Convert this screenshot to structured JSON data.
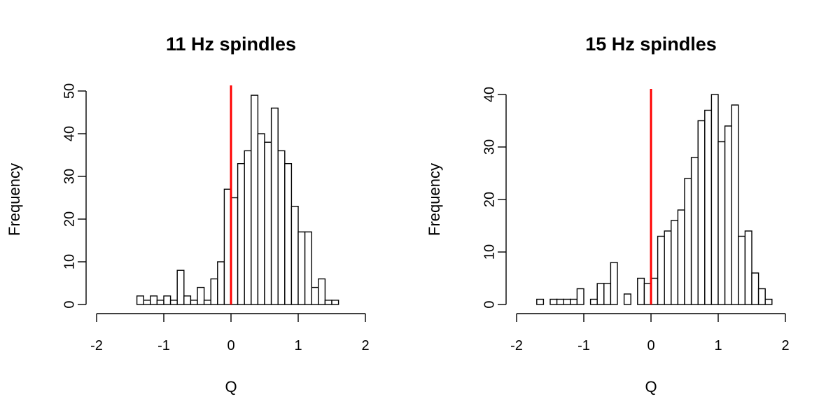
{
  "chart_data": [
    {
      "type": "bar",
      "title": "11 Hz spindles",
      "xlabel": "Q",
      "ylabel": "Frequency",
      "xlim": [
        -2,
        2
      ],
      "ylim": [
        0,
        50
      ],
      "x_ticks": [
        "-2",
        "-1",
        "0",
        "1",
        "2"
      ],
      "y_ticks": [
        "0",
        "10",
        "20",
        "30",
        "40",
        "50"
      ],
      "bin_width": 0.1,
      "bins_start": [
        -1.4,
        -1.3,
        -1.2,
        -1.1,
        -1.0,
        -0.9,
        -0.8,
        -0.7,
        -0.6,
        -0.5,
        -0.4,
        -0.3,
        -0.2,
        -0.1,
        0.0,
        0.1,
        0.2,
        0.3,
        0.4,
        0.5,
        0.6,
        0.7,
        0.8,
        0.9,
        1.0,
        1.1,
        1.2,
        1.3,
        1.4,
        1.5
      ],
      "values": [
        2,
        1,
        2,
        1,
        2,
        1,
        8,
        2,
        1,
        4,
        1,
        6,
        10,
        27,
        25,
        33,
        36,
        49,
        40,
        38,
        46,
        36,
        33,
        23,
        17,
        17,
        4,
        6,
        1,
        1
      ],
      "reference_line": {
        "x": 0,
        "color": "#ff0000"
      },
      "bar_fill": "#ffffff",
      "bar_stroke": "#000000",
      "grid": false
    },
    {
      "type": "bar",
      "title": "15 Hz spindles",
      "xlabel": "Q",
      "ylabel": "Frequency",
      "xlim": [
        -2,
        2
      ],
      "ylim": [
        0,
        40
      ],
      "x_ticks": [
        "-2",
        "-1",
        "0",
        "1",
        "2"
      ],
      "y_ticks": [
        "0",
        "10",
        "20",
        "30",
        "40"
      ],
      "bin_width": 0.1,
      "bins_start": [
        -1.7,
        -1.6,
        -1.5,
        -1.4,
        -1.3,
        -1.2,
        -1.1,
        -1.0,
        -0.9,
        -0.8,
        -0.7,
        -0.6,
        -0.5,
        -0.4,
        -0.3,
        -0.2,
        -0.1,
        0.0,
        0.1,
        0.2,
        0.3,
        0.4,
        0.5,
        0.6,
        0.7,
        0.8,
        0.9,
        1.0,
        1.1,
        1.2,
        1.3,
        1.4,
        1.5,
        1.6,
        1.7
      ],
      "values": [
        1,
        0,
        1,
        1,
        1,
        1,
        3,
        0,
        1,
        4,
        4,
        8,
        0,
        2,
        0,
        5,
        4,
        5,
        13,
        14,
        16,
        18,
        24,
        28,
        35,
        37,
        40,
        31,
        34,
        38,
        13,
        14,
        6,
        3,
        1
      ],
      "reference_line": {
        "x": 0,
        "color": "#ff0000"
      },
      "bar_fill": "#ffffff",
      "bar_stroke": "#000000",
      "grid": false
    }
  ]
}
